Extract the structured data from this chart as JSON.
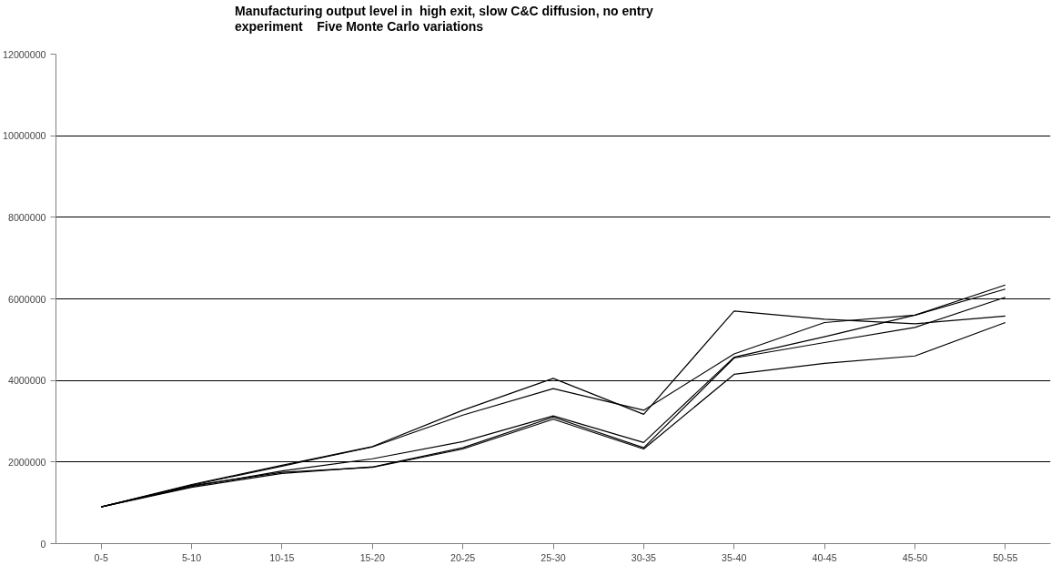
{
  "chart_data": {
    "type": "line",
    "title": "Manufacturing output level in  high exit, slow C&C diffusion, no entry\nexperiment    Five Monte Carlo variations",
    "categories": [
      "0-5",
      "5-10",
      "10-15",
      "15-20",
      "20-25",
      "25-30",
      "30-35",
      "35-40",
      "40-45",
      "45-50",
      "50-55"
    ],
    "series": [
      {
        "color": "#000000",
        "values": [
          900000,
          1450000,
          1920000,
          2380000,
          3270000,
          4050000,
          3170000,
          5700000,
          5500000,
          5390000,
          5580000
        ]
      },
      {
        "color": "#000000",
        "values": [
          900000,
          1430000,
          1900000,
          2370000,
          3150000,
          3800000,
          3270000,
          4650000,
          5420000,
          5600000,
          6240000
        ]
      },
      {
        "color": "#000000",
        "values": [
          900000,
          1400000,
          1780000,
          2080000,
          2500000,
          3130000,
          2480000,
          4570000,
          5070000,
          5600000,
          6340000
        ]
      },
      {
        "color": "#000000",
        "values": [
          900000,
          1380000,
          1720000,
          1880000,
          2350000,
          3100000,
          2350000,
          4550000,
          4930000,
          5300000,
          6040000
        ]
      },
      {
        "color": "#000000",
        "values": [
          900000,
          1420000,
          1750000,
          1870000,
          2320000,
          3050000,
          2320000,
          4150000,
          4420000,
          4600000,
          5420000
        ]
      }
    ],
    "ylim": [
      0,
      12000000
    ],
    "yticks": [
      0,
      2000000,
      4000000,
      6000000,
      8000000,
      10000000,
      12000000
    ],
    "grid": "y",
    "marker": "none",
    "line_style": "solid"
  }
}
